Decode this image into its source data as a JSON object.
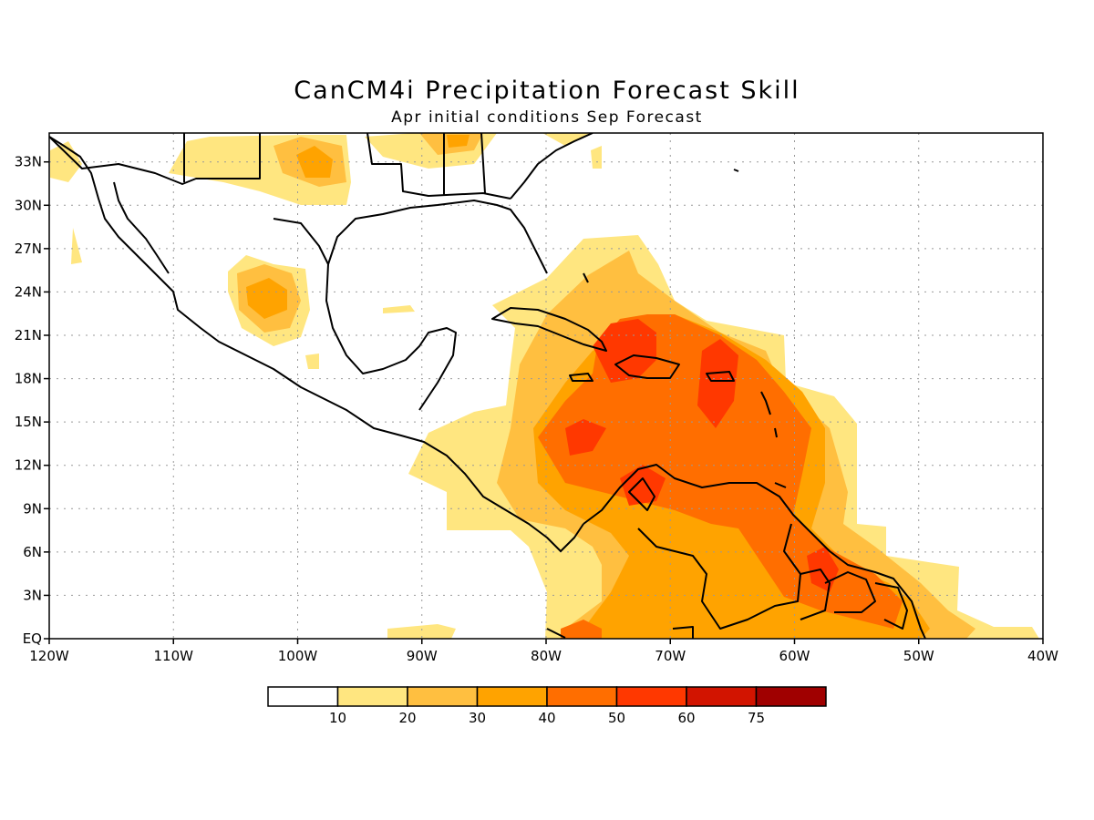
{
  "title": "CanCM4i Precipitation Forecast Skill",
  "subtitle": "Apr initial conditions  Sep Forecast",
  "map": {
    "lon_range": [
      -120,
      -40
    ],
    "lat_range": [
      0,
      35
    ],
    "lat_ticks": [
      {
        "value": 33,
        "label": "33N"
      },
      {
        "value": 30,
        "label": "30N"
      },
      {
        "value": 27,
        "label": "27N"
      },
      {
        "value": 24,
        "label": "24N"
      },
      {
        "value": 21,
        "label": "21N"
      },
      {
        "value": 18,
        "label": "18N"
      },
      {
        "value": 15,
        "label": "15N"
      },
      {
        "value": 12,
        "label": "12N"
      },
      {
        "value": 9,
        "label": "9N"
      },
      {
        "value": 6,
        "label": "6N"
      },
      {
        "value": 3,
        "label": "3N"
      },
      {
        "value": 0,
        "label": "EQ"
      }
    ],
    "lon_ticks": [
      {
        "value": -120,
        "label": "120W"
      },
      {
        "value": -110,
        "label": "110W"
      },
      {
        "value": -100,
        "label": "100W"
      },
      {
        "value": -90,
        "label": "90W"
      },
      {
        "value": -80,
        "label": "80W"
      },
      {
        "value": -70,
        "label": "70W"
      },
      {
        "value": -60,
        "label": "60W"
      },
      {
        "value": -50,
        "label": "50W"
      },
      {
        "value": -40,
        "label": "40W"
      }
    ],
    "grid": true
  },
  "colorbar": {
    "colors": [
      "#ffffff",
      "#ffe680",
      "#ffbf40",
      "#ffa300",
      "#ff6e00",
      "#ff3800",
      "#d21400",
      "#a00000"
    ],
    "labels": [
      "10",
      "20",
      "30",
      "40",
      "50",
      "60",
      "75"
    ]
  },
  "skill_levels": [
    {
      "level": 10,
      "color": "#ffe680"
    },
    {
      "level": 20,
      "color": "#ffbf40"
    },
    {
      "level": 30,
      "color": "#ffa300"
    },
    {
      "level": 40,
      "color": "#ff6e00"
    },
    {
      "level": 50,
      "color": "#ff3800"
    }
  ]
}
